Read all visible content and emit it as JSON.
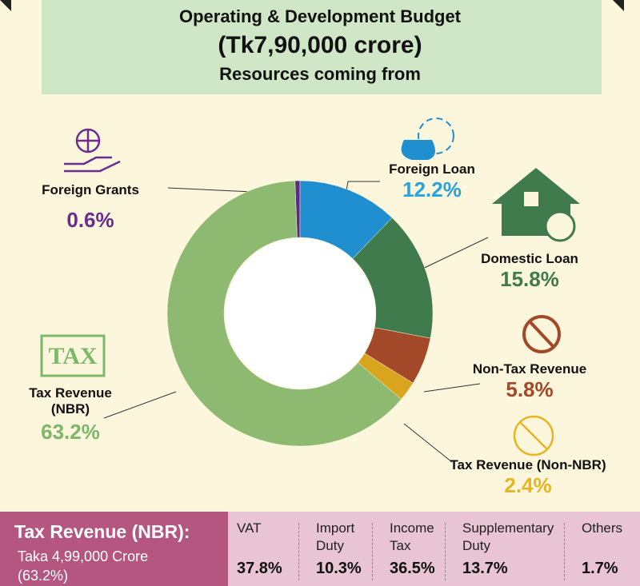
{
  "chart_data": {
    "type": "donut",
    "title": "Operating & Development Budget",
    "subtitle": "(Tk7,90,000 crore)",
    "caption": "Resources coming from",
    "categories": [
      "Foreign Grants",
      "Foreign Loan",
      "Domestic Loan",
      "Non-Tax Revenue",
      "Tax Revenue (Non-NBR)",
      "Tax Revenue (NBR)"
    ],
    "values": [
      0.6,
      12.2,
      15.8,
      5.8,
      2.4,
      63.2
    ],
    "value_labels": [
      "0.6%",
      "12.2%",
      "15.8%",
      "5.8%",
      "2.4%",
      "63.2%"
    ],
    "colors": [
      "#5b2a86",
      "#1f8fcf",
      "#3f7b4c",
      "#a3492a",
      "#d9a51e",
      "#8dba70"
    ],
    "label_colors": [
      "#6a2c91",
      "#29a3dc",
      "#3e7a4c",
      "#a3492a",
      "#e8b422",
      "#7cb868"
    ]
  },
  "footer": {
    "title": "Tax Revenue (NBR):",
    "text": "Taka 4,99,000 Crore (63.2%)",
    "items": [
      {
        "label": "VAT",
        "value": "37.8%"
      },
      {
        "label": "Import Duty",
        "value": "10.3%"
      },
      {
        "label": "Income Tax",
        "value": "36.5%"
      },
      {
        "label": "Supplementary Duty",
        "value": "13.7%"
      },
      {
        "label": "Others",
        "value": "1.7%"
      }
    ]
  }
}
